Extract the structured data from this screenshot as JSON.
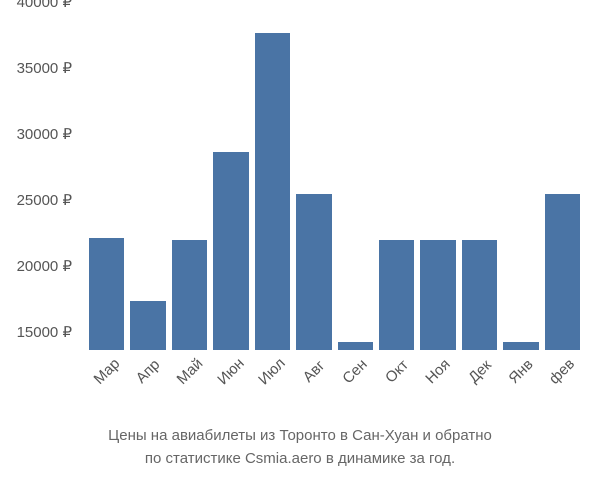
{
  "chart": {
    "type": "bar",
    "categories": [
      "Мар",
      "Апр",
      "Май",
      "Июн",
      "Июл",
      "Авг",
      "Сен",
      "Окт",
      "Ноя",
      "Дек",
      "Янв",
      "фев"
    ],
    "values": [
      23500,
      18700,
      23300,
      30000,
      39000,
      26800,
      15600,
      23300,
      23300,
      23300,
      15600,
      26800
    ],
    "bar_color": "#4a74a5",
    "ylim": [
      15000,
      40000
    ],
    "ytick_step": 5000,
    "ytick_labels": [
      "15000 ₽",
      "20000 ₽",
      "25000 ₽",
      "30000 ₽",
      "35000 ₽",
      "40000 ₽"
    ],
    "ytick_values": [
      15000,
      20000,
      25000,
      30000,
      35000,
      40000
    ],
    "background_color": "#ffffff",
    "label_fontsize": 15,
    "label_color": "#555",
    "bar_gap": 6
  },
  "caption": {
    "line1": "Цены на авиабилеты из Торонто в Сан-Хуан и обратно",
    "line2": "по статистике Csmia.aero в динамике за год."
  }
}
